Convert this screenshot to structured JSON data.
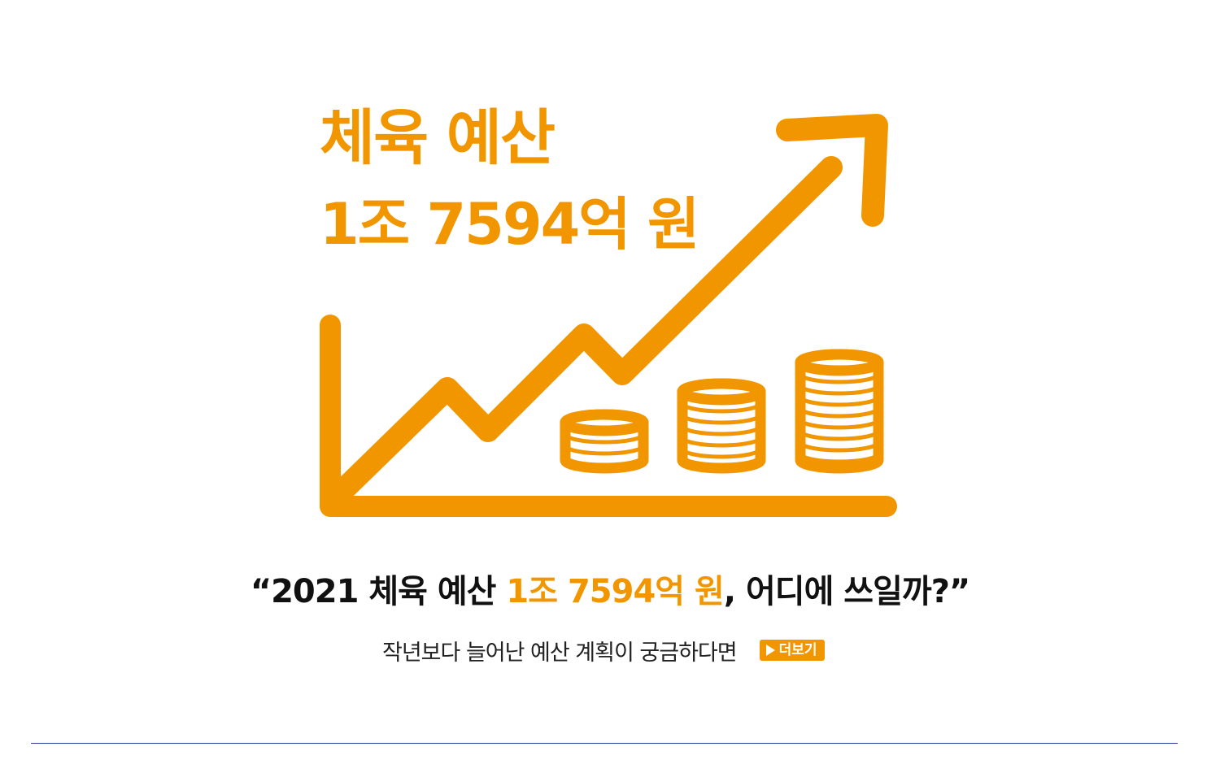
{
  "headline": {
    "line1": "체육 예산",
    "line2": "1조 7594억 원"
  },
  "question": {
    "before": "“2021 체육 예산 ",
    "highlight": "1조 7594억 원",
    "after": ", 어디에 쓰일까?”"
  },
  "subline": {
    "text": "작년보다 늘어난 예산 계획이 궁금하다면",
    "more_label": "더보기"
  },
  "colors": {
    "accent": "#f29600",
    "text": "#111111",
    "divider": "#2a3f97"
  },
  "icons": [
    "chart-axis-icon",
    "trend-arrow-icon",
    "coin-stack-icon",
    "play-icon"
  ]
}
